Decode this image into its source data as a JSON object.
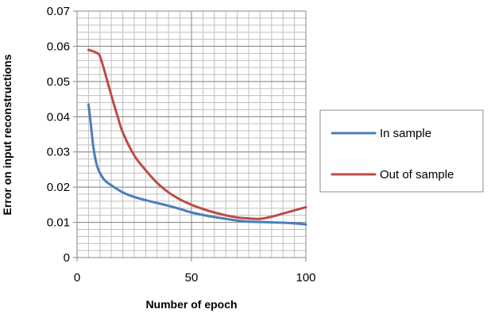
{
  "chart_data": {
    "type": "line",
    "xlabel": "Number of epoch",
    "ylabel": "Error on input reconstructions",
    "xlim": [
      0,
      100
    ],
    "ylim": [
      0,
      0.07
    ],
    "x_ticks": [
      0,
      50,
      100
    ],
    "x_tick_labels": [
      "0",
      "50",
      "100"
    ],
    "y_ticks": [
      0,
      0.01,
      0.02,
      0.03,
      0.04,
      0.05,
      0.06,
      0.07
    ],
    "y_tick_labels": [
      "0",
      "0.01",
      "0.02",
      "0.03",
      "0.04",
      "0.05",
      "0.06",
      "0.07"
    ],
    "grid": {
      "major": true,
      "minor": true
    },
    "legend_position": "right",
    "series": [
      {
        "name": "In sample",
        "color": "#4a7ebb",
        "x": [
          5,
          6,
          7,
          8,
          9,
          10,
          12,
          15,
          20,
          25,
          30,
          35,
          40,
          45,
          50,
          55,
          60,
          65,
          70,
          75,
          80,
          85,
          90,
          95,
          100
        ],
        "y": [
          0.0435,
          0.038,
          0.032,
          0.028,
          0.0255,
          0.024,
          0.022,
          0.0205,
          0.0185,
          0.0172,
          0.0163,
          0.0155,
          0.0147,
          0.0138,
          0.0128,
          0.0121,
          0.0115,
          0.011,
          0.0105,
          0.0102,
          0.0101,
          0.01,
          0.0099,
          0.0097,
          0.0094
        ]
      },
      {
        "name": "Out of sample",
        "color": "#be4b48",
        "x": [
          5,
          6,
          7,
          8,
          9,
          10,
          12,
          15,
          18,
          20,
          25,
          30,
          35,
          40,
          45,
          50,
          55,
          60,
          65,
          70,
          75,
          80,
          85,
          90,
          95,
          100
        ],
        "y": [
          0.059,
          0.0588,
          0.0586,
          0.0583,
          0.058,
          0.0572,
          0.053,
          0.046,
          0.0395,
          0.0355,
          0.029,
          0.0248,
          0.0212,
          0.0185,
          0.0165,
          0.015,
          0.0138,
          0.0128,
          0.012,
          0.0114,
          0.0111,
          0.011,
          0.0116,
          0.0125,
          0.0134,
          0.0143
        ]
      }
    ]
  }
}
